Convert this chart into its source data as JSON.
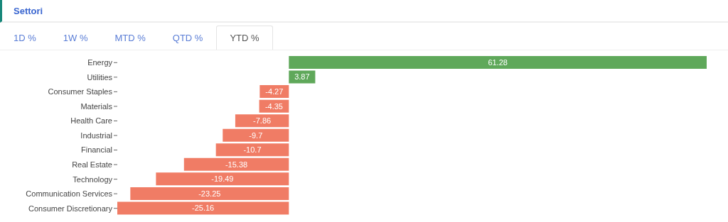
{
  "chart_data": {
    "type": "bar",
    "orientation": "horizontal",
    "title": "Settori",
    "annotations": [
      "1D %",
      "1W %",
      "MTD %",
      "QTD %",
      "YTD %"
    ],
    "categories": [
      "Energy",
      "Utilities",
      "Consumer Staples",
      "Materials",
      "Health Care",
      "Industrial",
      "Financial",
      "Real Estate",
      "Technology",
      "Communication Services",
      "Consumer Discretionary"
    ],
    "values": [
      61.28,
      3.87,
      -4.27,
      -4.35,
      -7.86,
      -9.7,
      -10.7,
      -15.38,
      -19.49,
      -23.25,
      -25.16
    ],
    "colors": [
      "#5fa85a",
      "#5fa85a",
      "#f07c65",
      "#f07c65",
      "#f07c65",
      "#f07c65",
      "#f07c65",
      "#f07c65",
      "#f07c65",
      "#f07c65",
      "#f07c65"
    ],
    "data_labels": true
  }
}
